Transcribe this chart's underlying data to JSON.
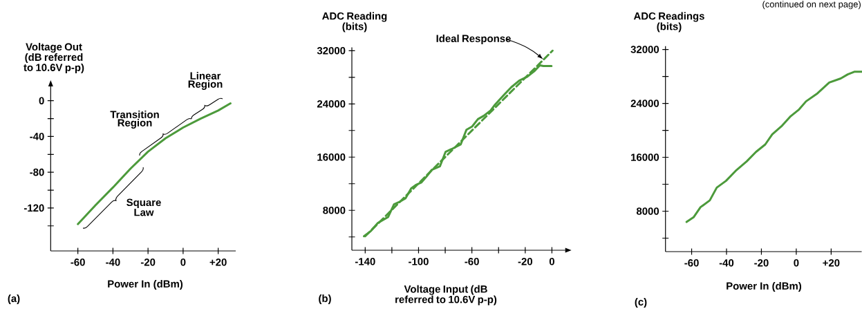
{
  "chart_data": [
    {
      "type": "line",
      "xlabel": "Power In (dBm)",
      "ylabel": "Voltage Out (dB referred to 10.6V p-p)",
      "color": "#4c9a3b",
      "x": [
        -60,
        -50,
        -40,
        -30,
        -20,
        -10,
        0,
        10,
        20,
        27
      ],
      "values": [
        -138,
        -117,
        -97,
        -76,
        -57,
        -42,
        -30,
        -20,
        -11,
        -3
      ],
      "xlim": [
        -75.5,
        30
      ],
      "ylim": [
        -168,
        16
      ],
      "xticks": [
        -60,
        -40,
        -20,
        0,
        {
          "value": 20,
          "label": "+20"
        }
      ],
      "yticks": [
        0,
        {
          "value": -20,
          "label": null
        },
        -40,
        {
          "value": -60,
          "label": null
        },
        -80,
        {
          "value": -100,
          "label": null
        },
        -120,
        {
          "value": -140,
          "label": null
        }
      ],
      "annotations": [
        "Transition Region",
        "Linear Region",
        "Square Law",
        "(a)"
      ]
    },
    {
      "type": "line",
      "xlabel": "Voltage Input (dB referred to 10.6V p-p)",
      "ylabel": "ADC Reading (bits)",
      "series": [
        {
          "color": "#4c9a3b",
          "x": [
            -140.9,
            -135.7,
            -130.5,
            -127.1,
            -122.8,
            -118.4,
            -115,
            -109.8,
            -105.5,
            -102.1,
            -97.8,
            -94.3,
            -90,
            -84,
            -79.7,
            -75.3,
            -68.4,
            -64.1,
            -59.8,
            -55.5,
            -51.2,
            -46,
            -42.6,
            -35.7,
            -30.5,
            -24.5,
            -18.4,
            -13.3,
            -9,
            -6.4,
            -0.3
          ],
          "values": [
            4100,
            4900,
            6100,
            6500,
            7000,
            8900,
            9200,
            9800,
            11300,
            11800,
            12200,
            13000,
            14100,
            14600,
            16800,
            17200,
            17900,
            20100,
            20600,
            21700,
            22200,
            23000,
            23900,
            25400,
            26500,
            27500,
            28100,
            28900,
            29800,
            29700,
            29700
          ]
        },
        {
          "color": "#4c9a3b",
          "line_style": "dashed",
          "x": [
            -140,
            0.5
          ],
          "values": [
            4100,
            32000
          ]
        }
      ],
      "xlim": [
        -150,
        10
      ],
      "ylim": [
        2000,
        32500
      ],
      "xticks": [
        -140,
        {
          "value": -120,
          "label": null
        },
        -100,
        {
          "value": -80,
          "label": null
        },
        -60,
        {
          "value": -40,
          "label": null
        },
        -20,
        0
      ],
      "yticks": [
        {
          "value": 4000,
          "label": null
        },
        8000,
        {
          "value": 12000,
          "label": null
        },
        16000,
        {
          "value": 20000,
          "label": null
        },
        24000,
        {
          "value": 28000,
          "label": null
        },
        32000
      ],
      "annotations": [
        "Ideal Response",
        "(b)"
      ]
    },
    {
      "type": "line",
      "xlabel": "Power In (dBm)",
      "ylabel": "ADC Readings (bits)",
      "color": "#4c9a3b",
      "x": [
        -62.9,
        -58.9,
        -54.9,
        -49.6,
        -45.6,
        -40.3,
        -34.3,
        -28.4,
        -23.1,
        -17.8,
        -13.8,
        -8.5,
        -3.2,
        1.6,
        5.6,
        12.2,
        18.9,
        25.5,
        29.5,
        33.5,
        37.5
      ],
      "values": [
        6400,
        7100,
        8600,
        9600,
        11500,
        12500,
        14100,
        15400,
        16800,
        17900,
        19400,
        20600,
        22100,
        23100,
        24300,
        25500,
        27100,
        27700,
        28300,
        28700,
        28700
      ],
      "xlim": [
        -75,
        37.5
      ],
      "ylim": [
        2000,
        32500
      ],
      "xticks": [
        -60,
        -40,
        -20,
        0,
        {
          "value": 20,
          "label": "+20"
        }
      ],
      "yticks": [
        {
          "value": 4000,
          "label": null
        },
        8000,
        {
          "value": 12000,
          "label": null
        },
        16000,
        {
          "value": 20000,
          "label": null
        },
        24000,
        {
          "value": 28000,
          "label": null
        },
        32000
      ],
      "annotations": [
        "(continued on next page)",
        "(c)"
      ]
    }
  ]
}
